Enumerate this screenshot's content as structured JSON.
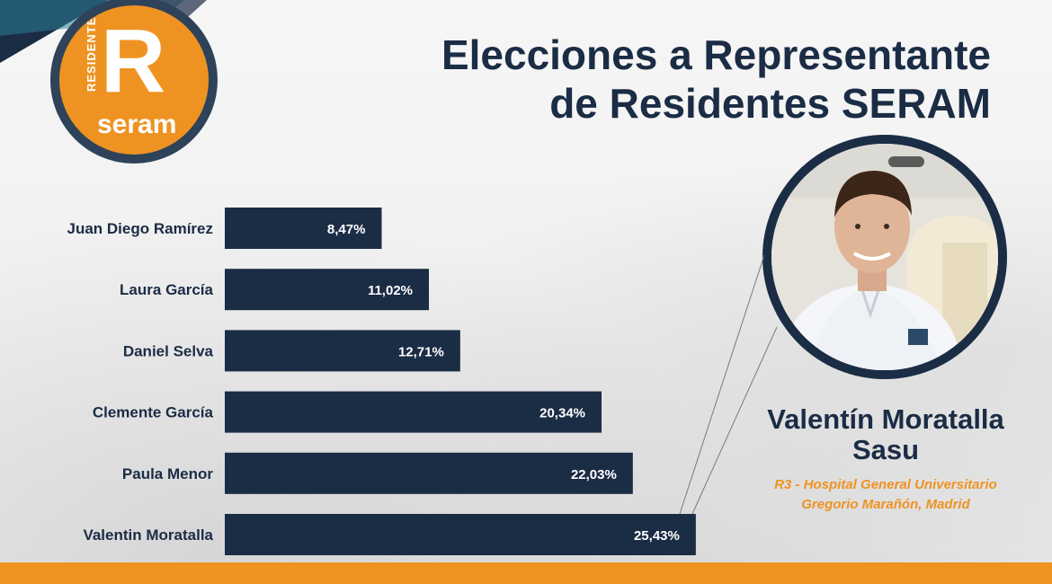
{
  "logo": {
    "letter": "R",
    "vertical_text": "RESIDENTES",
    "word": "seram"
  },
  "title": {
    "line1": "Elecciones a Representante",
    "line2": "de Residentes SERAM"
  },
  "winner": {
    "name_line1": "Valentín Moratalla",
    "name_line2": "Sasu",
    "role_line1": "R3 - Hospital General Universitario",
    "role_line2": "Gregorio Marañón, Madrid"
  },
  "chart_data": {
    "type": "bar",
    "orientation": "horizontal",
    "categories": [
      "Juan Diego Ramírez",
      "Laura García",
      "Daniel Selva",
      "Clemente García",
      "Paula Menor",
      "Valentin Moratalla"
    ],
    "values": [
      8.47,
      11.02,
      12.71,
      20.34,
      22.03,
      25.43
    ],
    "value_labels": [
      "8,47%",
      "11,02%",
      "12,71%",
      "20,34%",
      "22,03%",
      "25,43%"
    ],
    "unit": "%",
    "grid": false,
    "legend": false
  },
  "colors": {
    "navy": "#1b2c45",
    "orange": "#ee9322",
    "ring": "#2e4359",
    "background": "#f4f4f4"
  }
}
